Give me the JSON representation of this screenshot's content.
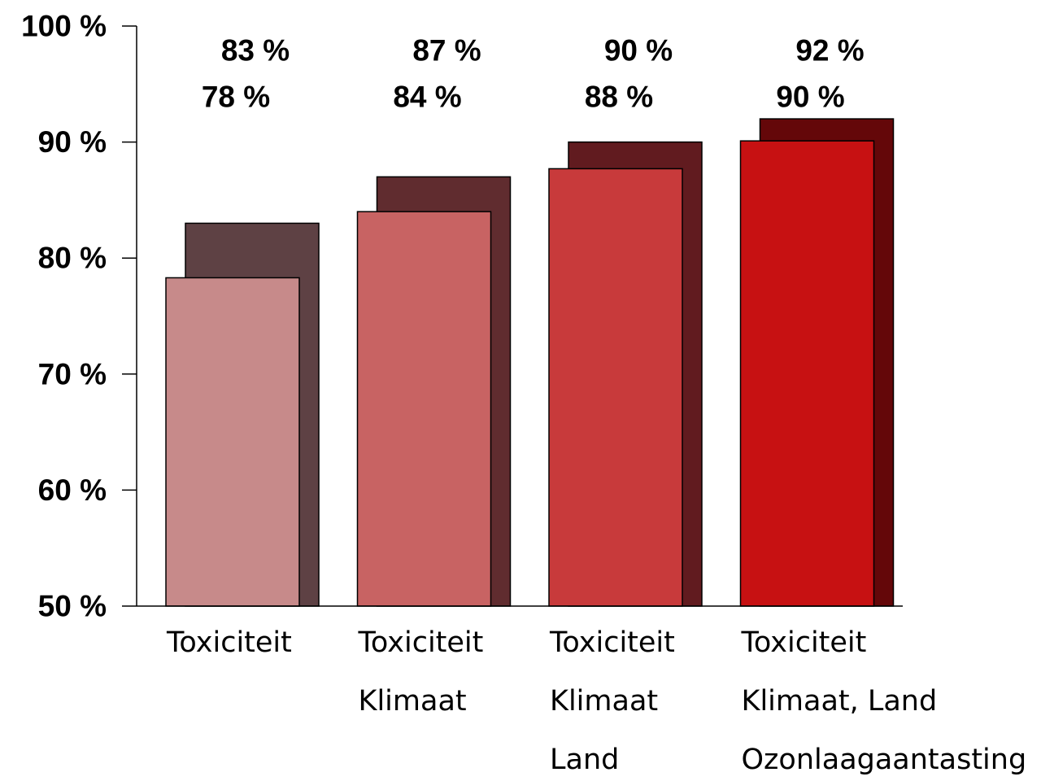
{
  "chart_data": {
    "type": "bar",
    "title": "",
    "xlabel": "",
    "ylabel": "",
    "ylim": [
      50,
      100
    ],
    "yticks": [
      50,
      60,
      70,
      80,
      90,
      100
    ],
    "ytick_labels": [
      "50 %",
      "60 %",
      "70 %",
      "80 %",
      "90 %",
      "100 %"
    ],
    "grid": false,
    "legend": "none",
    "categories": [
      [
        "Toxiciteit"
      ],
      [
        "Toxiciteit",
        "Klimaat"
      ],
      [
        "Toxiciteit",
        "Klimaat",
        "Land"
      ],
      [
        "Toxiciteit",
        "Klimaat, Land",
        "Ozonlaagaantasting"
      ]
    ],
    "series": [
      {
        "values": [
          83,
          87,
          90,
          92
        ],
        "labels": [
          "83 %",
          "87 %",
          "90 %",
          "92 %"
        ],
        "colors": [
          "#5e4144",
          "#602c2f",
          "#611b1f",
          "#640709"
        ]
      },
      {
        "values": [
          78.3,
          84,
          87.7,
          90.1
        ],
        "labels": [
          "78 %",
          "84 %",
          "88 %",
          "90 %"
        ],
        "colors": [
          "#c78a8a",
          "#c86363",
          "#c83a3b",
          "#c71112"
        ]
      }
    ]
  }
}
